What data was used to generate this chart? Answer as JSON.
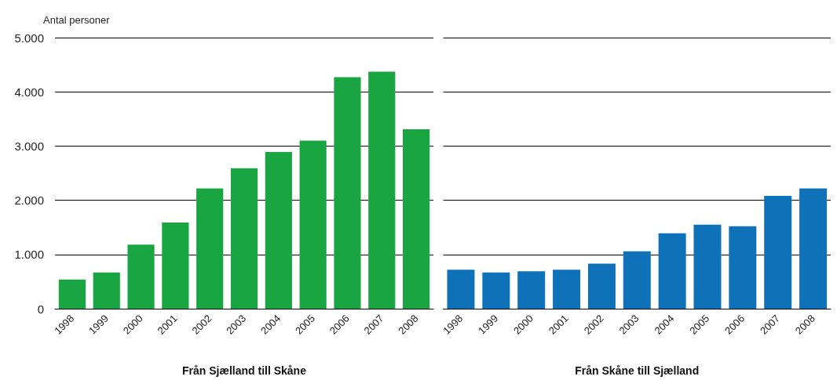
{
  "chart_data": [
    {
      "type": "bar",
      "ylabel": "Antal personer",
      "xlabel": "Från Sjælland till Skåne",
      "categories": [
        "1998",
        "1999",
        "2000",
        "2001",
        "2002",
        "2003",
        "2004",
        "2005",
        "2006",
        "2007",
        "2008"
      ],
      "values": [
        540,
        670,
        1180,
        1590,
        2220,
        2590,
        2890,
        3100,
        4270,
        4370,
        3310
      ],
      "color": "#1aa543",
      "ylim": [
        0,
        5000
      ],
      "yticks": [
        0,
        {
          "value": 1000,
          "label": "1.000"
        },
        {
          "value": 2000,
          "label": "2.000"
        },
        {
          "value": 3000,
          "label": "3.000"
        },
        {
          "value": 4000,
          "label": "4.000"
        },
        {
          "value": 5000,
          "label": "5.000"
        }
      ],
      "grid": "y"
    },
    {
      "type": "bar",
      "xlabel": "Från Skåne till Sjælland",
      "categories": [
        "1998",
        "1999",
        "2000",
        "2001",
        "2002",
        "2003",
        "2004",
        "2005",
        "2006",
        "2007",
        "2008"
      ],
      "values": [
        720,
        670,
        690,
        720,
        830,
        1060,
        1390,
        1550,
        1520,
        2080,
        2220
      ],
      "color": "#0f72b8",
      "ylim": [
        0,
        5000
      ],
      "yticks": [
        0,
        1000,
        2000,
        3000,
        4000,
        5000
      ],
      "grid": "y",
      "tick_labels": "x"
    }
  ]
}
